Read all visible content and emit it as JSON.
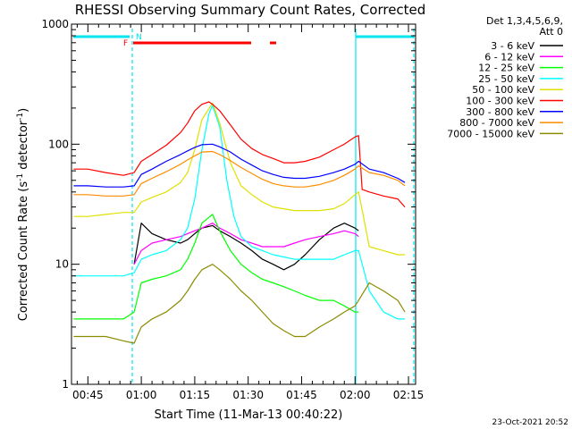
{
  "chart_data": {
    "type": "line",
    "title": "RHESSI Observing Summary Count Rates, Corrected",
    "xlabel": "Start Time (11-Mar-13 00:40:22)",
    "ylabel": "Corrected Count Rate (s-1 detector-1)",
    "ylabel_parts": {
      "main": "Corrected Count Rate (s",
      "sup1": "-1",
      "mid": " detector",
      "sup2": "-1",
      "end": ")"
    },
    "y_scale": "log",
    "ylim": [
      1,
      1000
    ],
    "xlim": [
      40.4,
      137
    ],
    "y_ticks": [
      1,
      10,
      100,
      1000
    ],
    "y_tick_labels": [
      "1",
      "10",
      "100",
      "1000"
    ],
    "x_ticks": [
      45,
      60,
      75,
      90,
      105,
      120,
      135
    ],
    "x_tick_labels": [
      "00:45",
      "01:00",
      "01:15",
      "01:30",
      "01:45",
      "02:00",
      "02:15"
    ],
    "legend_header": [
      "Det 1,3,4,5,6,9,",
      "Att 0"
    ],
    "legend_placement": "right",
    "series": [
      {
        "name": "3 - 6 keV",
        "color": "#000000",
        "x": [
          58,
          60,
          63,
          67,
          71,
          73,
          75,
          77,
          80,
          82,
          85,
          88,
          91,
          94,
          97,
          100,
          103,
          106,
          110,
          114,
          117,
          120,
          121
        ],
        "y": [
          10,
          22,
          18,
          16,
          15,
          16,
          18,
          20,
          21,
          19,
          17,
          15,
          13,
          11,
          10,
          9,
          10,
          12,
          16,
          20,
          22,
          20,
          19
        ]
      },
      {
        "name": "6 - 12 keV",
        "color": "#ff00ff",
        "x": [
          58,
          60,
          63,
          67,
          71,
          73,
          75,
          77,
          80,
          82,
          85,
          88,
          91,
          94,
          97,
          100,
          103,
          106,
          110,
          114,
          117,
          120,
          121
        ],
        "y": [
          10,
          13,
          15,
          16,
          17,
          18,
          19,
          20,
          22,
          20,
          18,
          16,
          15,
          14,
          14,
          14,
          15,
          16,
          17,
          18,
          19,
          18,
          17
        ]
      },
      {
        "name": "12 - 25 keV",
        "color": "#00ff00",
        "x": [
          41,
          45,
          50,
          55,
          58,
          60,
          63,
          67,
          71,
          73,
          75,
          77,
          80,
          82,
          85,
          88,
          91,
          94,
          97,
          100,
          103,
          106,
          110,
          114,
          117,
          120,
          121
        ],
        "y": [
          3.5,
          3.5,
          3.5,
          3.5,
          4,
          7,
          7.5,
          8,
          9,
          11,
          15,
          22,
          26,
          19,
          13,
          10,
          8.5,
          7.5,
          7,
          6.5,
          6,
          5.5,
          5,
          5,
          4.5,
          4,
          4
        ]
      },
      {
        "name": "25 - 50 keV",
        "color": "#00ffff",
        "x": [
          41,
          45,
          50,
          55,
          58,
          60,
          63,
          67,
          71,
          73,
          75,
          77,
          79,
          80,
          82,
          84,
          86,
          88,
          91,
          94,
          97,
          100,
          103,
          106,
          110,
          114,
          117,
          120,
          121,
          124,
          128,
          132,
          134
        ],
        "y": [
          8,
          8,
          8,
          8,
          8.5,
          11,
          12,
          13,
          16,
          20,
          35,
          90,
          180,
          210,
          140,
          50,
          25,
          17,
          14,
          13,
          12,
          11.5,
          11,
          11,
          11,
          11,
          12,
          13,
          13,
          6,
          4,
          3.5,
          3.5
        ]
      },
      {
        "name": "50 - 100 keV",
        "color": "#e0e000",
        "x": [
          41,
          45,
          50,
          55,
          58,
          60,
          63,
          67,
          71,
          73,
          75,
          77,
          80,
          82,
          85,
          88,
          91,
          94,
          97,
          100,
          103,
          106,
          110,
          114,
          117,
          120,
          121,
          124,
          128,
          132,
          134
        ],
        "y": [
          25,
          25,
          26,
          27,
          27,
          33,
          36,
          40,
          48,
          58,
          90,
          160,
          220,
          150,
          70,
          45,
          38,
          33,
          30,
          29,
          28,
          28,
          28,
          29,
          32,
          38,
          40,
          14,
          13,
          12,
          12
        ]
      },
      {
        "name": "100 - 300 keV",
        "color": "#ff0000",
        "x": [
          41,
          45,
          50,
          55,
          58,
          60,
          63,
          67,
          71,
          73,
          75,
          77,
          79,
          80,
          82,
          85,
          88,
          91,
          94,
          97,
          100,
          103,
          106,
          110,
          114,
          117,
          120,
          121,
          122,
          124,
          128,
          132,
          134
        ],
        "y": [
          62,
          62,
          58,
          55,
          58,
          72,
          82,
          98,
          125,
          150,
          190,
          215,
          225,
          215,
          190,
          145,
          110,
          92,
          82,
          76,
          70,
          70,
          72,
          78,
          90,
          100,
          115,
          118,
          42,
          40,
          37,
          35,
          30
        ]
      },
      {
        "name": "300 - 800 keV",
        "color": "#0000ff",
        "x": [
          41,
          45,
          50,
          55,
          58,
          60,
          63,
          67,
          71,
          73,
          75,
          77,
          80,
          82,
          85,
          88,
          91,
          94,
          97,
          100,
          103,
          106,
          110,
          114,
          117,
          120,
          121,
          124,
          128,
          132,
          134
        ],
        "y": [
          45,
          45,
          44,
          44,
          45,
          56,
          62,
          72,
          82,
          88,
          94,
          99,
          100,
          95,
          86,
          75,
          67,
          60,
          56,
          53,
          52,
          52,
          54,
          58,
          62,
          68,
          72,
          62,
          58,
          52,
          48
        ]
      },
      {
        "name": "800 - 7000 keV",
        "color": "#ff8c00",
        "x": [
          41,
          45,
          50,
          55,
          58,
          60,
          63,
          67,
          71,
          73,
          75,
          77,
          80,
          82,
          85,
          88,
          91,
          94,
          97,
          100,
          103,
          106,
          110,
          114,
          117,
          120,
          121,
          124,
          128,
          132,
          134
        ],
        "y": [
          38,
          38,
          37,
          37,
          38,
          47,
          52,
          59,
          68,
          74,
          80,
          86,
          87,
          82,
          73,
          64,
          57,
          51,
          47,
          45,
          44,
          44,
          46,
          50,
          55,
          62,
          66,
          58,
          55,
          50,
          45
        ]
      },
      {
        "name": "7000 - 15000 keV",
        "color": "#8b8b00",
        "x": [
          41,
          45,
          50,
          55,
          58,
          60,
          63,
          67,
          71,
          73,
          75,
          77,
          80,
          82,
          85,
          88,
          91,
          94,
          97,
          100,
          103,
          106,
          110,
          114,
          117,
          120,
          121,
          124,
          128,
          132,
          134
        ],
        "y": [
          2.5,
          2.5,
          2.5,
          2.3,
          2.2,
          3,
          3.5,
          4,
          5,
          6,
          7.5,
          9,
          10,
          9,
          7.5,
          6,
          5,
          4,
          3.2,
          2.8,
          2.5,
          2.5,
          3,
          3.5,
          4,
          4.5,
          5,
          7,
          6,
          5,
          4
        ]
      }
    ],
    "annotations": [
      {
        "label": "N",
        "color": "#00e5ee"
      },
      {
        "label": "F",
        "color": "#ff0000"
      }
    ],
    "footer_timestamp": "23-Oct-2021 20:52"
  }
}
